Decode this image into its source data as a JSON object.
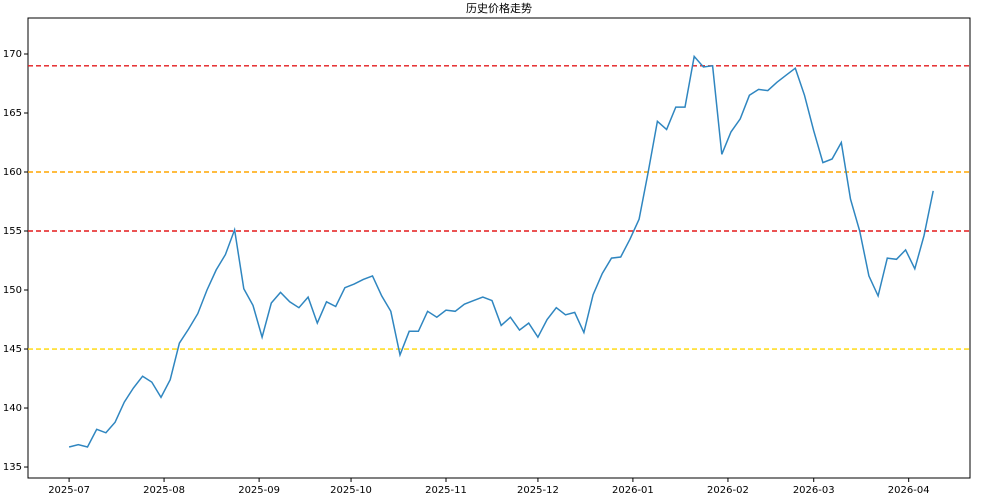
{
  "chart_data": {
    "type": "line",
    "title": "历史价格走势",
    "series": [
      {
        "color": "#2f86c0",
        "values": [
          136.7,
          136.9,
          136.7,
          138.2,
          137.9,
          138.8,
          140.5,
          141.7,
          142.7,
          142.2,
          140.9,
          142.4,
          145.5,
          146.7,
          148,
          150,
          151.7,
          153,
          155.1,
          150.1,
          148.7,
          146,
          148.9,
          149.8,
          149,
          148.5,
          149.4,
          147.2,
          149,
          148.6,
          150.2,
          150.5,
          150.9,
          151.2,
          149.5,
          148.2,
          144.5,
          146.5,
          146.5,
          148.2,
          147.7,
          148.3,
          148.2,
          148.8,
          149.1,
          149.4,
          149.1,
          147,
          147.7,
          146.6,
          147.2,
          146,
          147.5,
          148.5,
          147.9,
          148.1,
          146.4,
          149.6,
          151.4,
          152.7,
          152.8,
          154.3,
          156,
          160,
          164.3,
          163.6,
          165.5,
          165.5,
          169.8,
          168.9,
          169,
          161.5,
          163.4,
          164.5,
          166.5,
          167,
          166.9,
          167.6,
          168.2,
          168.8,
          166.5,
          163.5,
          160.8,
          161.1,
          162.5,
          157.7,
          155,
          151.2,
          149.5,
          152.7,
          152.6,
          153.4,
          151.8,
          154.6,
          158.4
        ]
      }
    ],
    "hlines": [
      {
        "value": 169,
        "color": "#e31a1c"
      },
      {
        "value": 160,
        "color": "#ffa500"
      },
      {
        "value": 155,
        "color": "#e31a1c"
      },
      {
        "value": 145,
        "color": "#ffd700"
      }
    ],
    "xlim": [
      -4.47,
      98.0
    ],
    "xticks": [
      {
        "value": 0,
        "label": "2025-07"
      },
      {
        "value": 10.33,
        "label": "2025-08"
      },
      {
        "value": 20.67,
        "label": "2025-09"
      },
      {
        "value": 30.67,
        "label": "2025-10"
      },
      {
        "value": 41,
        "label": "2025-11"
      },
      {
        "value": 51,
        "label": "2025-12"
      },
      {
        "value": 61.33,
        "label": "2026-01"
      },
      {
        "value": 71.67,
        "label": "2026-02"
      },
      {
        "value": 81,
        "label": "2026-03"
      },
      {
        "value": 91.33,
        "label": "2026-04"
      }
    ],
    "ylim": [
      134.07,
      173.05
    ],
    "yticks": [
      135,
      140,
      145,
      150,
      155,
      160,
      165,
      170
    ]
  }
}
